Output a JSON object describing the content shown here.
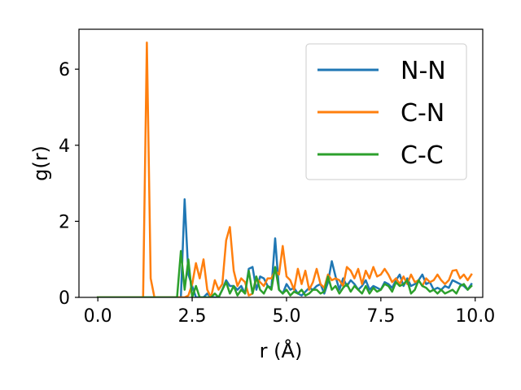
{
  "chart_data": {
    "type": "line",
    "xlabel": "r (Å)",
    "ylabel": "g(r)",
    "xlim": [
      -0.5,
      10.2
    ],
    "ylim": [
      0,
      7.05
    ],
    "xticks": [
      0.0,
      2.5,
      5.0,
      7.5,
      10.0
    ],
    "xtick_labels": [
      "0.0",
      "2.5",
      "5.0",
      "7.5",
      "10.0"
    ],
    "yticks": [
      0,
      2,
      4,
      6
    ],
    "ytick_labels": [
      "0",
      "2",
      "4",
      "6"
    ],
    "grid": false,
    "legend_position": "top-right",
    "colors": {
      "N-N": "#1f77b4",
      "C-N": "#ff7f0e",
      "C-C": "#2ca02c"
    },
    "series": [
      {
        "name": "N-N",
        "x": [
          0.0,
          2.0,
          2.1,
          2.2,
          2.3,
          2.4,
          2.5,
          2.6,
          2.7,
          2.8,
          2.9,
          3.0,
          3.1,
          3.2,
          3.3,
          3.4,
          3.5,
          3.6,
          3.7,
          3.8,
          3.9,
          4.0,
          4.1,
          4.2,
          4.3,
          4.4,
          4.5,
          4.6,
          4.7,
          4.8,
          4.9,
          5.0,
          5.1,
          5.2,
          5.3,
          5.4,
          5.5,
          5.6,
          5.7,
          5.8,
          5.9,
          6.0,
          6.1,
          6.2,
          6.3,
          6.4,
          6.5,
          6.6,
          6.7,
          6.8,
          6.9,
          7.0,
          7.1,
          7.2,
          7.3,
          7.4,
          7.5,
          7.6,
          7.7,
          7.8,
          7.9,
          8.0,
          8.1,
          8.2,
          8.3,
          8.4,
          8.5,
          8.6,
          8.7,
          8.8,
          8.9,
          9.0,
          9.1,
          9.2,
          9.3,
          9.4,
          9.5,
          9.6,
          9.7,
          9.8,
          9.9
        ],
        "y": [
          0,
          0,
          0,
          0,
          2.58,
          0.6,
          0.3,
          0,
          0,
          0,
          0.1,
          0,
          0,
          0,
          0.2,
          0.45,
          0.3,
          0.3,
          0.2,
          0.3,
          0.1,
          0.75,
          0.8,
          0.2,
          0.55,
          0.5,
          0.3,
          0.25,
          1.55,
          0.2,
          0.1,
          0.35,
          0.2,
          0.25,
          0.1,
          0.05,
          0.15,
          0.25,
          0.2,
          0.3,
          0.35,
          0.1,
          0.4,
          0.95,
          0.55,
          0.2,
          0.5,
          0.3,
          0.45,
          0.35,
          0.2,
          0.3,
          0.45,
          0.2,
          0.3,
          0.25,
          0.2,
          0.4,
          0.35,
          0.25,
          0.45,
          0.6,
          0.3,
          0.5,
          0.3,
          0.35,
          0.45,
          0.6,
          0.35,
          0.4,
          0.2,
          0.25,
          0.2,
          0.3,
          0.25,
          0.45,
          0.4,
          0.35,
          0.3,
          0.2,
          0.35
        ]
      },
      {
        "name": "C-N",
        "x": [
          0.0,
          1.2,
          1.3,
          1.4,
          1.5,
          1.6,
          2.0,
          2.1,
          2.2,
          2.3,
          2.4,
          2.5,
          2.6,
          2.7,
          2.8,
          2.9,
          3.0,
          3.1,
          3.2,
          3.3,
          3.4,
          3.5,
          3.6,
          3.7,
          3.8,
          3.9,
          4.0,
          4.1,
          4.2,
          4.3,
          4.4,
          4.5,
          4.6,
          4.7,
          4.8,
          4.9,
          5.0,
          5.1,
          5.2,
          5.3,
          5.4,
          5.5,
          5.6,
          5.7,
          5.8,
          5.9,
          6.0,
          6.1,
          6.2,
          6.3,
          6.4,
          6.5,
          6.6,
          6.7,
          6.8,
          6.9,
          7.0,
          7.1,
          7.2,
          7.3,
          7.4,
          7.5,
          7.6,
          7.7,
          7.8,
          7.9,
          8.0,
          8.1,
          8.2,
          8.3,
          8.4,
          8.5,
          8.6,
          8.7,
          8.8,
          8.9,
          9.0,
          9.1,
          9.2,
          9.3,
          9.4,
          9.5,
          9.6,
          9.7,
          9.8,
          9.9
        ],
        "y": [
          0,
          0,
          6.7,
          0.5,
          0,
          0,
          0,
          0,
          0,
          0,
          0.05,
          0.35,
          0.9,
          0.5,
          1.0,
          0.2,
          0,
          0.45,
          0.2,
          0.35,
          1.5,
          1.85,
          0.7,
          0.3,
          0.5,
          0.4,
          0.05,
          0.1,
          0.5,
          0.4,
          0.3,
          0.5,
          0.5,
          0.7,
          0.6,
          1.35,
          0.55,
          0.45,
          0.2,
          0.75,
          0.35,
          0.7,
          0.2,
          0.4,
          0.75,
          0.35,
          0.25,
          0.6,
          0.45,
          0.5,
          0.45,
          0.3,
          0.8,
          0.7,
          0.5,
          0.75,
          0.35,
          0.7,
          0.5,
          0.8,
          0.55,
          0.6,
          0.75,
          0.6,
          0.4,
          0.5,
          0.35,
          0.55,
          0.35,
          0.6,
          0.4,
          0.45,
          0.3,
          0.5,
          0.4,
          0.45,
          0.6,
          0.45,
          0.35,
          0.45,
          0.7,
          0.72,
          0.5,
          0.6,
          0.45,
          0.6
        ]
      },
      {
        "name": "C-C",
        "x": [
          0.0,
          2.1,
          2.2,
          2.3,
          2.4,
          2.5,
          2.6,
          2.7,
          2.8,
          2.9,
          3.0,
          3.1,
          3.2,
          3.3,
          3.4,
          3.5,
          3.6,
          3.7,
          3.8,
          3.9,
          4.0,
          4.1,
          4.2,
          4.3,
          4.4,
          4.5,
          4.6,
          4.7,
          4.8,
          4.9,
          5.0,
          5.1,
          5.2,
          5.3,
          5.4,
          5.5,
          5.6,
          5.7,
          5.8,
          5.9,
          6.0,
          6.1,
          6.2,
          6.3,
          6.4,
          6.5,
          6.6,
          6.7,
          6.8,
          6.9,
          7.0,
          7.1,
          7.2,
          7.3,
          7.4,
          7.5,
          7.6,
          7.7,
          7.8,
          7.9,
          8.0,
          8.1,
          8.2,
          8.3,
          8.4,
          8.5,
          8.6,
          8.7,
          8.8,
          8.9,
          9.0,
          9.1,
          9.2,
          9.3,
          9.4,
          9.5,
          9.6,
          9.7,
          9.8,
          9.9
        ],
        "y": [
          0,
          0,
          1.22,
          0.2,
          1.0,
          0,
          0.3,
          0,
          0,
          0,
          0,
          0.1,
          0,
          0.2,
          0.4,
          0.1,
          0.3,
          0.05,
          0.2,
          0.1,
          0.7,
          0.1,
          0.55,
          0.2,
          0.1,
          0.3,
          0.2,
          0.8,
          0.2,
          0.1,
          0.2,
          0.05,
          0.15,
          0.1,
          0.2,
          0.05,
          0.1,
          0.2,
          0.2,
          0.1,
          0.15,
          0.55,
          0.2,
          0.3,
          0.1,
          0.25,
          0.35,
          0.15,
          0.3,
          0.2,
          0.1,
          0.3,
          0.1,
          0.25,
          0.15,
          0.2,
          0.35,
          0.3,
          0.15,
          0.4,
          0.3,
          0.35,
          0.45,
          0.1,
          0.2,
          0.45,
          0.3,
          0.25,
          0.15,
          0.2,
          0.1,
          0.2,
          0.1,
          0.15,
          0.2,
          0.1,
          0.3,
          0.35,
          0.2,
          0.3
        ]
      }
    ]
  }
}
